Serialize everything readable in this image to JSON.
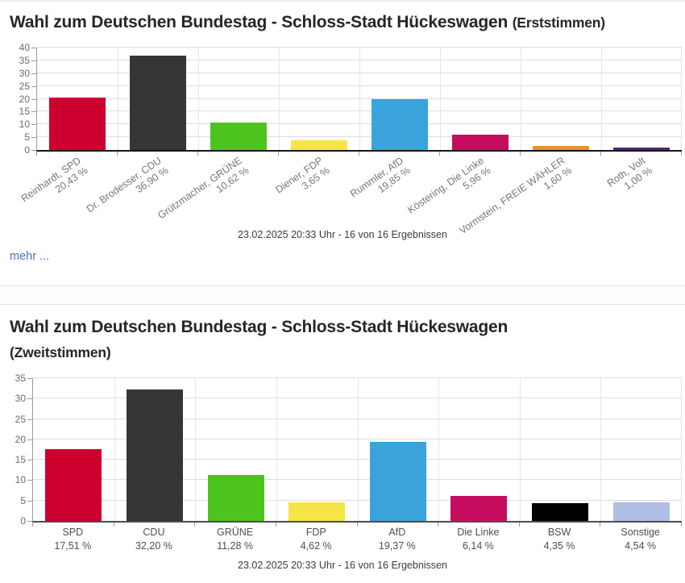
{
  "panel1": {
    "title_main": "Wahl zum Deutschen Bundestag - Schloss-Stadt Hückeswagen",
    "title_suffix": "(Erststimmen)",
    "status": "23.02.2025 20:33 Uhr - 16 von 16 Ergebnissen",
    "more_label": "mehr ..."
  },
  "panel2": {
    "title_main": "Wahl zum Deutschen Bundestag - Schloss-Stadt Hückeswagen",
    "title_suffix": "(Zweitstimmen)",
    "status": "23.02.2025 20:33 Uhr - 16 von 16 Ergebnissen"
  },
  "chart_data": [
    {
      "type": "bar",
      "title": "Wahl zum Deutschen Bundestag - Schloss-Stadt Hückeswagen (Erststimmen)",
      "categories": [
        "Reinhardt, SPD",
        "Dr. Brodesser, CDU",
        "Grützmacher, GRÜNE",
        "Diener, FDP",
        "Rummler, AfD",
        "Köstering, Die Linke",
        "Vormstein, FREIE WÄHLER",
        "Roth, Volt"
      ],
      "values": [
        20.43,
        36.9,
        10.62,
        3.65,
        19.85,
        5.96,
        1.6,
        1.0
      ],
      "value_labels": [
        "20,43 %",
        "36,90 %",
        "10,62 %",
        "3,65 %",
        "19,85 %",
        "5,96 %",
        "1,60 %",
        "1,00 %"
      ],
      "bar_colors": [
        "#ce0030",
        "#363636",
        "#4dc41e",
        "#f6e545",
        "#3aa3dc",
        "#c60d5f",
        "#e8912d",
        "#4e2a72"
      ],
      "ylim": [
        0,
        40
      ],
      "ytick_step": 5,
      "grid": true,
      "legend": false,
      "xlabel": "",
      "ylabel": ""
    },
    {
      "type": "bar",
      "title": "Wahl zum Deutschen Bundestag - Schloss-Stadt Hückeswagen (Zweitstimmen)",
      "categories": [
        "SPD",
        "CDU",
        "GRÜNE",
        "FDP",
        "AfD",
        "Die Linke",
        "BSW",
        "Sonstige"
      ],
      "values": [
        17.51,
        32.2,
        11.28,
        4.62,
        19.37,
        6.14,
        4.35,
        4.54
      ],
      "value_labels": [
        "17,51 %",
        "32,20 %",
        "11,28 %",
        "4,62 %",
        "19,37 %",
        "6,14 %",
        "4,35 %",
        "4,54 %"
      ],
      "bar_colors": [
        "#ce0030",
        "#363636",
        "#4dc41e",
        "#f6e545",
        "#3aa3dc",
        "#c60d5f",
        "#000000",
        "#afbee4"
      ],
      "ylim": [
        0,
        35
      ],
      "ytick_step": 5,
      "grid": true,
      "legend": false,
      "xlabel": "",
      "ylabel": ""
    }
  ]
}
